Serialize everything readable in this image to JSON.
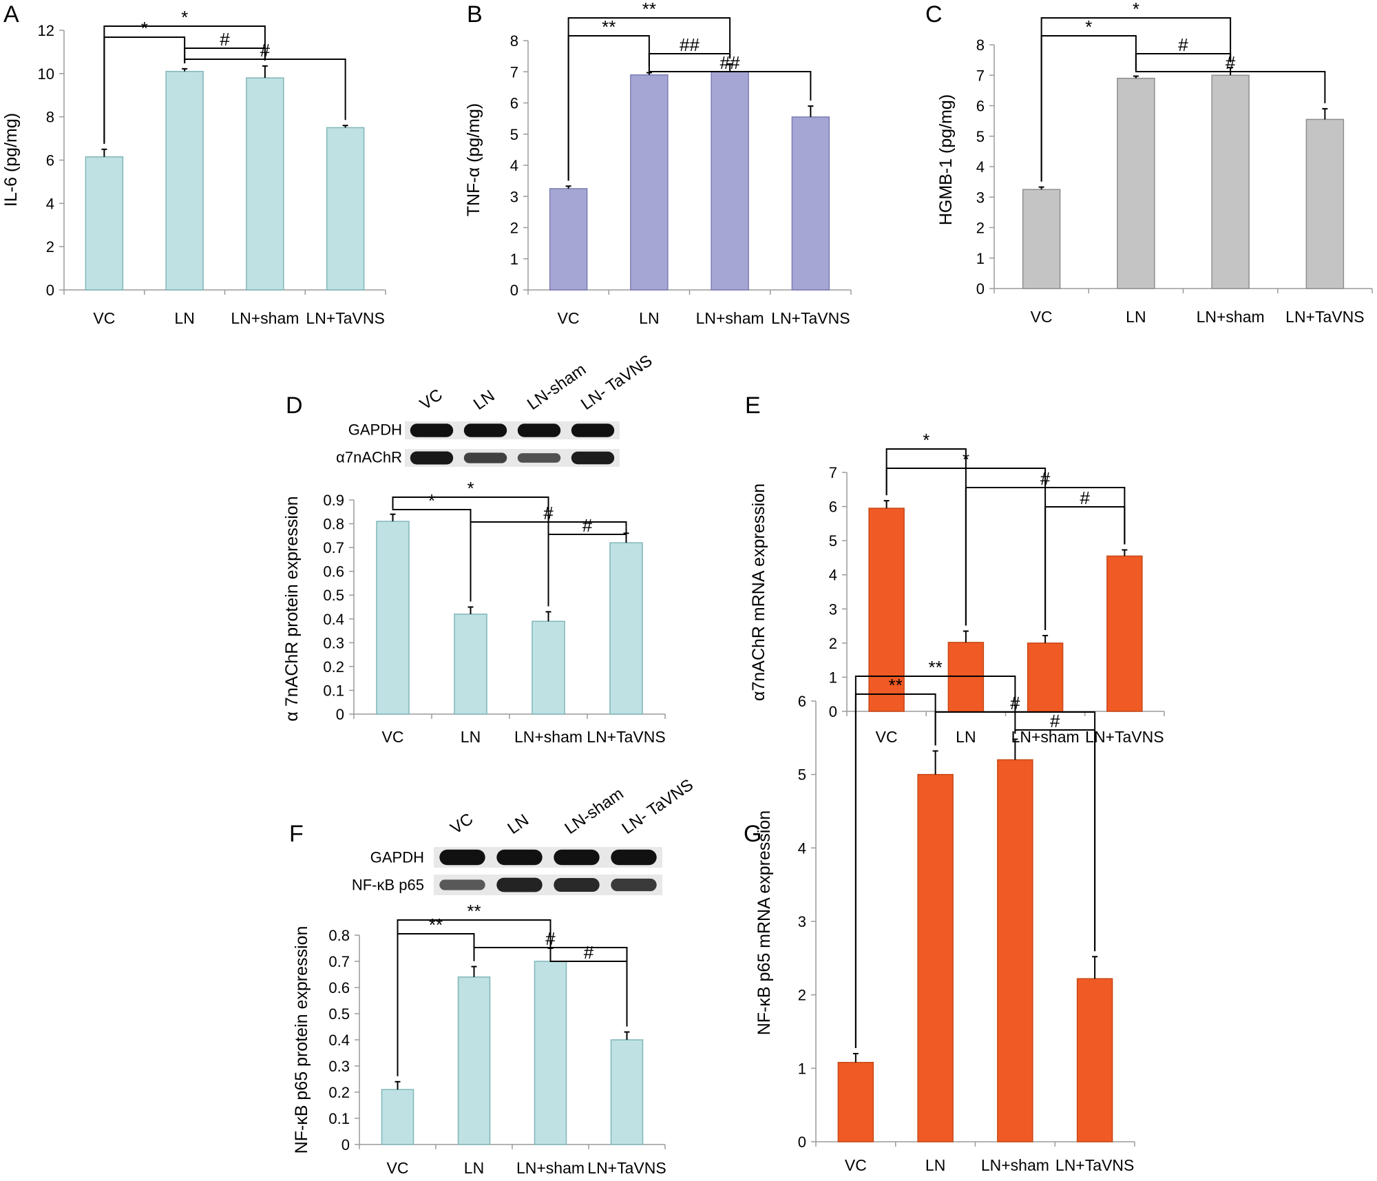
{
  "chart_data": [
    {
      "type": "bar",
      "panel": "A",
      "categories": [
        "VC",
        "LN",
        "LN+sham",
        "LN+TaVNS"
      ],
      "values": [
        6.15,
        10.1,
        9.8,
        7.5
      ],
      "errors": [
        0.35,
        0.12,
        0.55,
        0.1
      ],
      "ylabel": "IL-6 (pg/mg)",
      "ylim": [
        0,
        12
      ],
      "yticks": [
        "0",
        "2",
        "4",
        "6",
        "8",
        "10",
        "12"
      ],
      "bar_color": "#bfe1e3",
      "bar_edge": "#7fb6b9",
      "significance": [
        {
          "from": 0,
          "to": 2,
          "mark": "*"
        },
        {
          "from": 0,
          "to": 1,
          "mark": "*"
        },
        {
          "from": 1,
          "to": 2,
          "mark": "#"
        },
        {
          "from": 1,
          "to": 3,
          "mark": "#"
        }
      ]
    },
    {
      "type": "bar",
      "panel": "B",
      "categories": [
        "VC",
        "LN",
        "LN+sham",
        "LN+TaVNS"
      ],
      "values": [
        3.25,
        6.9,
        7.0,
        5.55
      ],
      "errors": [
        0.08,
        0.07,
        0.25,
        0.35
      ],
      "ylabel": "TNF-α (pg/mg)",
      "ylim": [
        0,
        8
      ],
      "yticks": [
        "0",
        "1",
        "2",
        "3",
        "4",
        "5",
        "6",
        "7",
        "8"
      ],
      "bar_color": "#a6a6d4",
      "bar_edge": "#7c7cb4",
      "significance": [
        {
          "from": 0,
          "to": 2,
          "mark": "**"
        },
        {
          "from": 0,
          "to": 1,
          "mark": "**"
        },
        {
          "from": 1,
          "to": 2,
          "mark": "##"
        },
        {
          "from": 1,
          "to": 3,
          "mark": "##"
        }
      ]
    },
    {
      "type": "bar",
      "panel": "C",
      "categories": [
        "VC",
        "LN",
        "LN+sham",
        "LN+TaVNS"
      ],
      "values": [
        3.25,
        6.9,
        7.0,
        5.55
      ],
      "errors": [
        0.08,
        0.07,
        0.25,
        0.35
      ],
      "ylabel": "HGMB-1 (pg/mg)",
      "ylim": [
        0,
        8
      ],
      "yticks": [
        "0",
        "1",
        "2",
        "3",
        "4",
        "5",
        "6",
        "7",
        "8"
      ],
      "bar_color": "#c4c4c4",
      "bar_edge": "#8e8e8e",
      "significance": [
        {
          "from": 0,
          "to": 2,
          "mark": "*"
        },
        {
          "from": 0,
          "to": 1,
          "mark": "*"
        },
        {
          "from": 1,
          "to": 2,
          "mark": "#"
        },
        {
          "from": 1,
          "to": 3,
          "mark": "#"
        }
      ]
    },
    {
      "type": "bar",
      "panel": "D",
      "categories": [
        "VC",
        "LN",
        "LN+sham",
        "LN+TaVNS"
      ],
      "values": [
        0.81,
        0.42,
        0.39,
        0.72
      ],
      "errors": [
        0.03,
        0.03,
        0.04,
        0.04
      ],
      "ylabel": "α 7nAChR protein expression",
      "ylim": [
        0,
        0.9
      ],
      "yticks": [
        "0",
        "0.1",
        "0.2",
        "0.3",
        "0.4",
        "0.5",
        "0.6",
        "0.7",
        "0.8",
        "0.9"
      ],
      "bar_color": "#bfe1e3",
      "bar_edge": "#7fb6b9",
      "blot": {
        "lanes": [
          "VC",
          "LN",
          "LN-sham",
          "LN- TaVNS"
        ],
        "rows": [
          {
            "label": "GAPDH",
            "intensity": [
              1,
              1,
              1,
              1
            ]
          },
          {
            "label": "α7nAChR",
            "intensity": [
              0.95,
              0.6,
              0.45,
              0.9
            ]
          }
        ]
      },
      "significance": [
        {
          "from": 0,
          "to": 2,
          "mark": "*"
        },
        {
          "from": 0,
          "to": 1,
          "mark": "*"
        },
        {
          "from": 1,
          "to": 3,
          "mark": "#"
        },
        {
          "from": 2,
          "to": 3,
          "mark": "#"
        }
      ]
    },
    {
      "type": "bar",
      "panel": "E",
      "categories": [
        "VC",
        "LN",
        "LN+sham",
        "LN+TaVNS"
      ],
      "values": [
        5.95,
        2.02,
        2.0,
        4.55
      ],
      "errors": [
        0.22,
        0.33,
        0.22,
        0.18
      ],
      "ylabel": "α7nAChR mRNA expression",
      "ylim": [
        0,
        7
      ],
      "yticks": [
        "0",
        "1",
        "2",
        "3",
        "4",
        "5",
        "6",
        "7"
      ],
      "bar_color": "#f05a24",
      "bar_edge": "#c84816",
      "significance": [
        {
          "from": 0,
          "to": 1,
          "mark": "*"
        },
        {
          "from": 0,
          "to": 2,
          "mark": "*"
        },
        {
          "from": 1,
          "to": 3,
          "mark": "#"
        },
        {
          "from": 2,
          "to": 3,
          "mark": "#"
        }
      ]
    },
    {
      "type": "bar",
      "panel": "F",
      "categories": [
        "VC",
        "LN",
        "LN+sham",
        "LN+TaVNS"
      ],
      "values": [
        0.21,
        0.64,
        0.7,
        0.4
      ],
      "errors": [
        0.03,
        0.04,
        0.05,
        0.03
      ],
      "ylabel": "NF-κB p65 protein expression",
      "ylim": [
        0,
        0.8
      ],
      "yticks": [
        "0",
        "0.1",
        "0.2",
        "0.3",
        "0.4",
        "0.5",
        "0.6",
        "0.7",
        "0.8"
      ],
      "bar_color": "#bfe1e3",
      "bar_edge": "#7fb6b9",
      "blot": {
        "lanes": [
          "VC",
          "LN",
          "LN-sham",
          "LN- TaVNS"
        ],
        "rows": [
          {
            "label": "GAPDH",
            "intensity": [
              1,
              1,
              1,
              1
            ]
          },
          {
            "label": "NF-κB p65",
            "intensity": [
              0.4,
              0.85,
              0.8,
              0.65
            ]
          }
        ]
      },
      "significance": [
        {
          "from": 0,
          "to": 2,
          "mark": "**"
        },
        {
          "from": 0,
          "to": 1,
          "mark": "**"
        },
        {
          "from": 1,
          "to": 3,
          "mark": "#"
        },
        {
          "from": 2,
          "to": 3,
          "mark": "#"
        }
      ]
    },
    {
      "type": "bar",
      "panel": "G",
      "categories": [
        "VC",
        "LN",
        "LN+sham",
        "LN+TaVNS"
      ],
      "values": [
        1.08,
        5.0,
        5.2,
        2.22
      ],
      "errors": [
        0.12,
        0.32,
        0.28,
        0.3
      ],
      "ylabel": "NF-κB p65 mRNA expression",
      "ylim": [
        0,
        6
      ],
      "yticks": [
        "0",
        "1",
        "2",
        "3",
        "4",
        "5",
        "6"
      ],
      "bar_color": "#f05a24",
      "bar_edge": "#c84816",
      "significance": [
        {
          "from": 0,
          "to": 2,
          "mark": "**"
        },
        {
          "from": 0,
          "to": 1,
          "mark": "**"
        },
        {
          "from": 1,
          "to": 3,
          "mark": "#"
        },
        {
          "from": 2,
          "to": 3,
          "mark": "#"
        }
      ]
    }
  ]
}
